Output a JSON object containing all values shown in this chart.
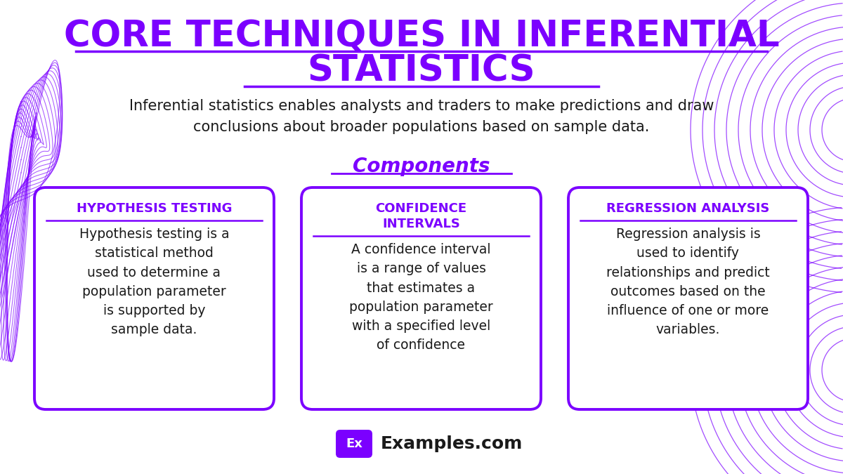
{
  "title_line1": "CORE TECHNIQUES IN INFERENTIAL",
  "title_line2": "STATISTICS",
  "subtitle": "Inferential statistics enables analysts and traders to make predictions and draw\nconclusions about broader populations based on sample data.",
  "components_label": "Components",
  "bg_color": "#ffffff",
  "purple": "#7B00FF",
  "black": "#1a1a1a",
  "cards": [
    {
      "title": "HYPOTHESIS TESTING",
      "body": "Hypothesis testing is a\nstatistical method\nused to determine a\npopulation parameter\nis supported by\nsample data."
    },
    {
      "title": "CONFIDENCE\nINTERVALS",
      "body": "A confidence interval\nis a range of values\nthat estimates a\npopulation parameter\nwith a specified level\nof confidence"
    },
    {
      "title": "REGRESSION ANALYSIS",
      "body": "Regression analysis is\nused to identify\nrelationships and predict\noutcomes based on the\ninfluence of one or more\nvariables."
    }
  ],
  "footer_text": "Examples.com",
  "footer_label": "Ex"
}
